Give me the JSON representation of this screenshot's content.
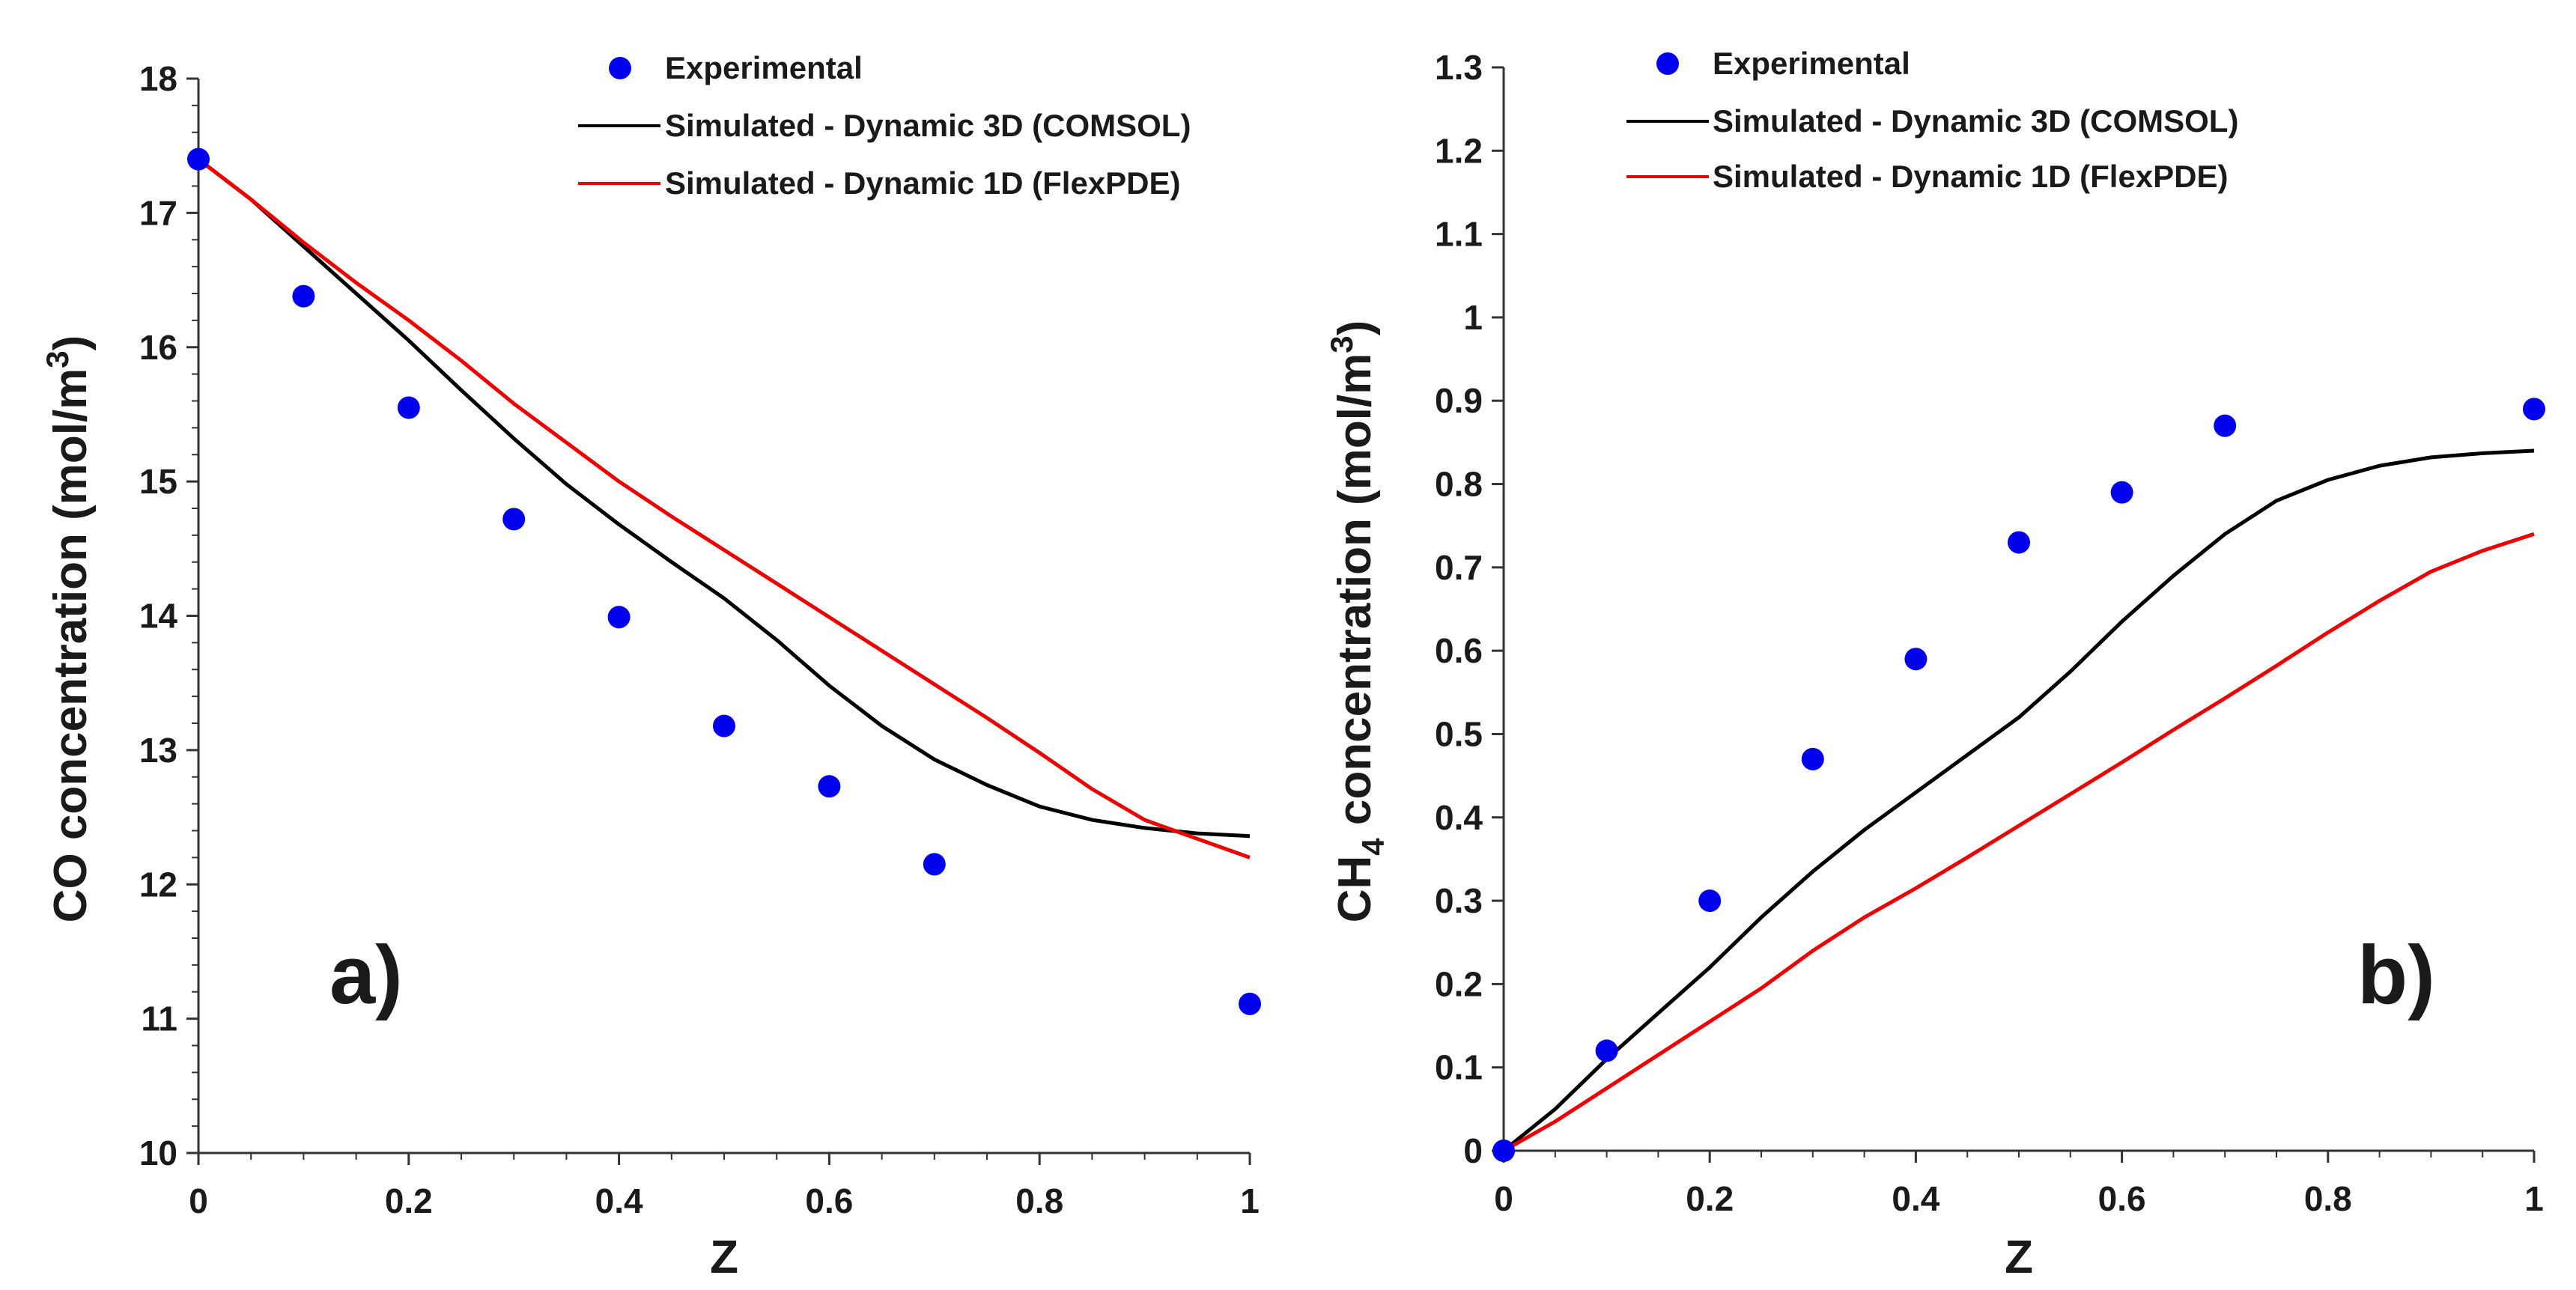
{
  "chart_data": [
    {
      "type": "line",
      "panel_label": "a)",
      "xlabel": "Z",
      "ylabel": "CO concentration (mol/m³)",
      "ylabel_parts": {
        "pre": "CO concentration (mol/m",
        "sup": "3",
        "post": ")"
      },
      "xlim": [
        0,
        1
      ],
      "ylim": [
        10,
        18
      ],
      "x_ticks": [
        0,
        0.2,
        0.4,
        0.6,
        0.8,
        1
      ],
      "x_tick_labels": [
        "0",
        "0.2",
        "0.4",
        "0.6",
        "0.8",
        "1"
      ],
      "y_ticks": [
        10,
        11,
        12,
        13,
        14,
        15,
        16,
        17,
        18
      ],
      "y_tick_labels": [
        "10",
        "11",
        "12",
        "13",
        "14",
        "15",
        "16",
        "17",
        "18"
      ],
      "legend_position": "top-right",
      "series": [
        {
          "name": "Experimental",
          "kind": "scatter",
          "color": "#0000ee",
          "x": [
            0,
            0.1,
            0.2,
            0.3,
            0.4,
            0.5,
            0.6,
            0.7,
            1.0
          ],
          "y": [
            17.4,
            16.38,
            15.55,
            14.72,
            13.99,
            13.18,
            12.73,
            12.15,
            11.11
          ]
        },
        {
          "name": "Simulated - Dynamic 3D (COMSOL)",
          "kind": "line",
          "color": "#000000",
          "x": [
            0,
            0.05,
            0.1,
            0.15,
            0.2,
            0.25,
            0.3,
            0.35,
            0.4,
            0.45,
            0.5,
            0.55,
            0.6,
            0.65,
            0.7,
            0.75,
            0.8,
            0.85,
            0.9,
            0.95,
            1.0
          ],
          "y": [
            17.4,
            17.1,
            16.75,
            16.4,
            16.05,
            15.68,
            15.32,
            14.98,
            14.68,
            14.4,
            14.13,
            13.82,
            13.48,
            13.18,
            12.93,
            12.74,
            12.58,
            12.48,
            12.42,
            12.38,
            12.36
          ]
        },
        {
          "name": "Simulated - Dynamic 1D (FlexPDE)",
          "kind": "line",
          "color": "#ee0000",
          "x": [
            0,
            0.05,
            0.1,
            0.15,
            0.2,
            0.25,
            0.3,
            0.35,
            0.4,
            0.45,
            0.5,
            0.55,
            0.6,
            0.65,
            0.7,
            0.75,
            0.8,
            0.85,
            0.9,
            0.95,
            1.0
          ],
          "y": [
            17.4,
            17.1,
            16.78,
            16.48,
            16.2,
            15.9,
            15.58,
            15.29,
            15.0,
            14.74,
            14.49,
            14.24,
            13.99,
            13.74,
            13.49,
            13.24,
            12.98,
            12.71,
            12.48,
            12.34,
            12.2
          ]
        }
      ]
    },
    {
      "type": "line",
      "panel_label": "b)",
      "xlabel": "Z",
      "ylabel": "CH₄ concentration (mol/m³)",
      "ylabel_parts": {
        "pre": "CH",
        "sub": "4",
        "mid": " concentration (mol/m",
        "sup": "3",
        "post": ")"
      },
      "xlim": [
        0,
        1
      ],
      "ylim": [
        0,
        1.3
      ],
      "x_ticks": [
        0,
        0.2,
        0.4,
        0.6,
        0.8,
        1
      ],
      "x_tick_labels": [
        "0",
        "0.2",
        "0.4",
        "0.6",
        "0.8",
        "1"
      ],
      "y_ticks": [
        0,
        0.1,
        0.2,
        0.3,
        0.4,
        0.5,
        0.6,
        0.7,
        0.8,
        0.9,
        1,
        1.1,
        1.2,
        1.3
      ],
      "y_tick_labels": [
        "0",
        "0.1",
        "0.2",
        "0.3",
        "0.4",
        "0.5",
        "0.6",
        "0.7",
        "0.8",
        "0.9",
        "1",
        "1.1",
        "1.2",
        "1.3"
      ],
      "legend_position": "top-left",
      "series": [
        {
          "name": "Experimental",
          "kind": "scatter",
          "color": "#0000ee",
          "x": [
            0,
            0.1,
            0.2,
            0.3,
            0.4,
            0.5,
            0.6,
            0.7,
            1.0
          ],
          "y": [
            0.0,
            0.12,
            0.3,
            0.47,
            0.59,
            0.73,
            0.79,
            0.87,
            0.89
          ]
        },
        {
          "name": "Simulated - Dynamic 3D (COMSOL)",
          "kind": "line",
          "color": "#000000",
          "x": [
            0,
            0.05,
            0.1,
            0.15,
            0.2,
            0.25,
            0.3,
            0.35,
            0.4,
            0.45,
            0.5,
            0.55,
            0.6,
            0.65,
            0.7,
            0.75,
            0.8,
            0.85,
            0.9,
            0.95,
            1.0
          ],
          "y": [
            0.0,
            0.05,
            0.11,
            0.165,
            0.22,
            0.28,
            0.335,
            0.385,
            0.43,
            0.475,
            0.52,
            0.575,
            0.635,
            0.69,
            0.74,
            0.78,
            0.805,
            0.822,
            0.832,
            0.837,
            0.84
          ]
        },
        {
          "name": "Simulated - Dynamic 1D (FlexPDE)",
          "kind": "line",
          "color": "#ee0000",
          "x": [
            0,
            0.05,
            0.1,
            0.15,
            0.2,
            0.25,
            0.3,
            0.35,
            0.4,
            0.45,
            0.5,
            0.55,
            0.6,
            0.65,
            0.7,
            0.75,
            0.8,
            0.85,
            0.9,
            0.95,
            1.0
          ],
          "y": [
            0.0,
            0.035,
            0.075,
            0.115,
            0.155,
            0.195,
            0.24,
            0.28,
            0.315,
            0.352,
            0.39,
            0.428,
            0.466,
            0.505,
            0.543,
            0.582,
            0.622,
            0.66,
            0.695,
            0.72,
            0.74
          ]
        }
      ]
    }
  ]
}
